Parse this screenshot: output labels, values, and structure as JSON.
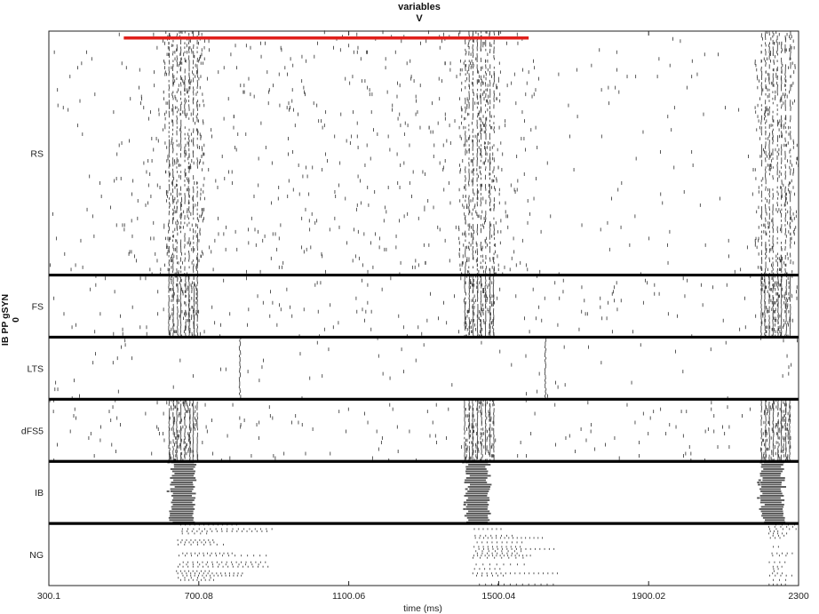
{
  "chart_data": {
    "type": "raster",
    "title": "variables",
    "subtitle": "V",
    "xlabel": "time (ms)",
    "ylabel_line1": "IB PP gSYN",
    "ylabel_line2": "0",
    "xlim": [
      300.1,
      2300
    ],
    "xticks": [
      {
        "value": 300.1,
        "label": "300.1"
      },
      {
        "value": 700.08,
        "label": "700.08"
      },
      {
        "value": 1100.06,
        "label": "1100.06"
      },
      {
        "value": 1500.04,
        "label": "1500.04"
      },
      {
        "value": 1900.02,
        "label": "1900.02"
      },
      {
        "value": 2300,
        "label": "2300"
      }
    ],
    "stimulus_bar": {
      "start": 500,
      "end": 1580,
      "color": "#e0201b"
    },
    "populations": [
      {
        "name": "RS",
        "rows": 110,
        "weight": 110,
        "base_rate": 0.0003,
        "burst_rate": 0.42,
        "color": "#444444"
      },
      {
        "name": "FS",
        "rows": 28,
        "weight": 28,
        "base_rate": 0.0003,
        "burst_rate": 0.7,
        "color": "#444444"
      },
      {
        "name": "LTS",
        "rows": 28,
        "weight": 28,
        "base_rate": 0.00012,
        "burst_rate": 0.05,
        "color": "#444444"
      },
      {
        "name": "dFS5",
        "rows": 28,
        "weight": 28,
        "base_rate": 0.0003,
        "burst_rate": 0.7,
        "color": "#444444"
      },
      {
        "name": "IB",
        "rows": 28,
        "weight": 28,
        "base_rate": 0.0,
        "burst_rate": 1.0,
        "color": "#555555"
      },
      {
        "name": "NG",
        "rows": 28,
        "weight": 28,
        "base_rate": 2e-05,
        "burst_rate": 0.3,
        "color": "#444444"
      }
    ],
    "bursts": [
      {
        "center": 660,
        "width": 70
      },
      {
        "center": 1450,
        "width": 70
      },
      {
        "center": 2240,
        "width": 70
      }
    ],
    "ib_bursts": [
      {
        "start": 625,
        "end": 690
      },
      {
        "start": 1412,
        "end": 1476
      },
      {
        "start": 2200,
        "end": 2262
      }
    ],
    "ng_trains": [
      {
        "start": 640,
        "end": 900,
        "interval": 12
      },
      {
        "start": 1430,
        "end": 1700,
        "interval": 12
      },
      {
        "start": 2220,
        "end": 2300,
        "interval": 12
      }
    ],
    "lts_sync_spikes": [
      810,
      1625
    ],
    "separator_color": "#000000",
    "grid": false
  }
}
